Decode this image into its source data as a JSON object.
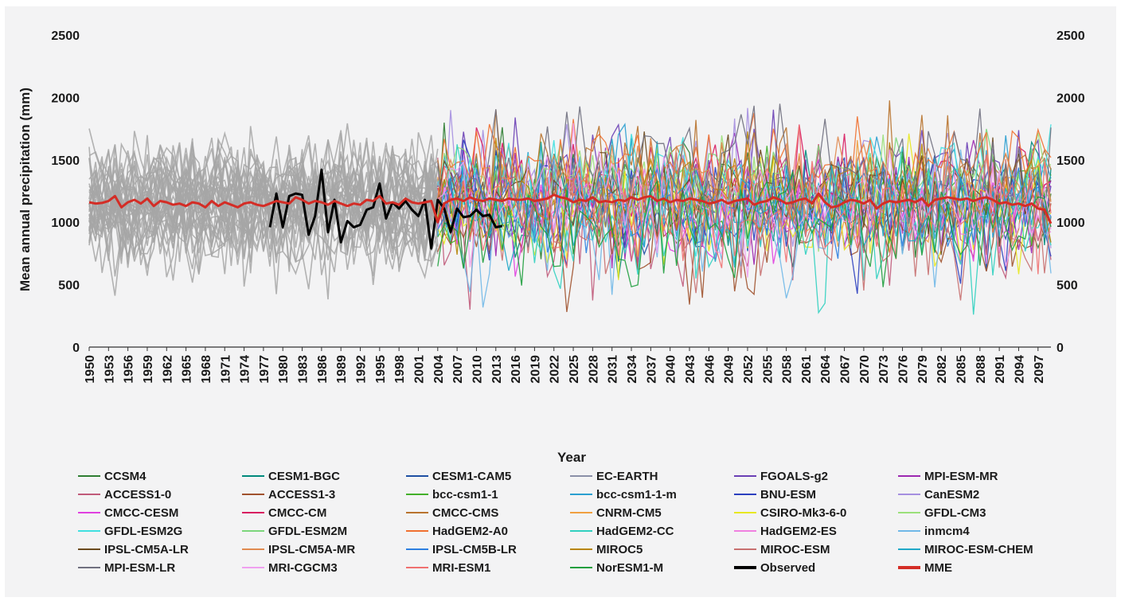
{
  "chart_data": {
    "type": "line",
    "title": "",
    "xlabel": "Year",
    "ylabel": "Mean annual precipitation (mm)",
    "xlim": [
      1950,
      2099
    ],
    "ylim": [
      0,
      2500
    ],
    "y_ticks": [
      0,
      500,
      1000,
      1500,
      2000,
      2500
    ],
    "x_ticks": [
      "1950",
      "1953",
      "1956",
      "1959",
      "1962",
      "1965",
      "1968",
      "1971",
      "1974",
      "1977",
      "1980",
      "1983",
      "1986",
      "1989",
      "1992",
      "1995",
      "1998",
      "2001",
      "2004",
      "2007",
      "2010",
      "2013",
      "2016",
      "2019",
      "2022",
      "2025",
      "2028",
      "2031",
      "2034",
      "2037",
      "2040",
      "2043",
      "2046",
      "2049",
      "2052",
      "2055",
      "2058",
      "2061",
      "2064",
      "2067",
      "2070",
      "2073",
      "2076",
      "2079",
      "2082",
      "2085",
      "2088",
      "2091",
      "2094",
      "2097"
    ],
    "grid": false,
    "legend_position": "bottom",
    "historical_period": [
      1950,
      2004
    ],
    "projection_period": [
      2004,
      2099
    ],
    "models": [
      {
        "name": "CCSM4",
        "color": "#2e7d32"
      },
      {
        "name": "CESM1-BGC",
        "color": "#00897b"
      },
      {
        "name": "CESM1-CAM5",
        "color": "#1e4fa3"
      },
      {
        "name": "EC-EARTH",
        "color": "#8a8fa8"
      },
      {
        "name": "FGOALS-g2",
        "color": "#6a3fb5"
      },
      {
        "name": "MPI-ESM-MR",
        "color": "#9c27b0"
      },
      {
        "name": "ACCESS1-0",
        "color": "#c05a7a"
      },
      {
        "name": "ACCESS1-3",
        "color": "#a0522d"
      },
      {
        "name": "bcc-csm1-1",
        "color": "#43b02a"
      },
      {
        "name": "bcc-csm1-1-m",
        "color": "#2a9fd0"
      },
      {
        "name": "BNU-ESM",
        "color": "#2b3fbf"
      },
      {
        "name": "CanESM2",
        "color": "#a58fe0"
      },
      {
        "name": "CMCC-CESM",
        "color": "#e040e0"
      },
      {
        "name": "CMCC-CM",
        "color": "#d81b60"
      },
      {
        "name": "CMCC-CMS",
        "color": "#b8732e"
      },
      {
        "name": "CNRM-CM5",
        "color": "#f0a040"
      },
      {
        "name": "CSIRO-Mk3-6-0",
        "color": "#e8e820"
      },
      {
        "name": "GFDL-CM3",
        "color": "#9be07a"
      },
      {
        "name": "GFDL-ESM2G",
        "color": "#40e0e0"
      },
      {
        "name": "GFDL-ESM2M",
        "color": "#7cd67c"
      },
      {
        "name": "HadGEM2-A0",
        "color": "#f07030"
      },
      {
        "name": "HadGEM2-CC",
        "color": "#30d0c0"
      },
      {
        "name": "HadGEM2-ES",
        "color": "#f080e0"
      },
      {
        "name": "inmcm4",
        "color": "#70b8e8"
      },
      {
        "name": "IPSL-CM5A-LR",
        "color": "#6b4a1e"
      },
      {
        "name": "IPSL-CM5A-MR",
        "color": "#e08a50"
      },
      {
        "name": "IPSL-CM5B-LR",
        "color": "#2d7fe0"
      },
      {
        "name": "MIROC5",
        "color": "#b8860b"
      },
      {
        "name": "MIROC-ESM",
        "color": "#c87070"
      },
      {
        "name": "MIROC-ESM-CHEM",
        "color": "#20a8c8"
      },
      {
        "name": "MPI-ESM-LR",
        "color": "#707080"
      },
      {
        "name": "MRI-CGCM3",
        "color": "#f0a0f0"
      },
      {
        "name": "MRI-ESM1",
        "color": "#f07070"
      },
      {
        "name": "NorESM1-M",
        "color": "#1f9e3e"
      }
    ],
    "series": [
      {
        "name": "Observed",
        "color": "#000000",
        "x": [
          1978,
          1979,
          1980,
          1981,
          1982,
          1983,
          1984,
          1985,
          1986,
          1987,
          1988,
          1989,
          1990,
          1991,
          1992,
          1993,
          1994,
          1995,
          1996,
          1997,
          1998,
          1999,
          2000,
          2001,
          2002,
          2003,
          2004,
          2005,
          2006,
          2007,
          2008,
          2009,
          2010,
          2011,
          2012,
          2013,
          2014
        ],
        "values": [
          960,
          1230,
          960,
          1210,
          1230,
          1220,
          900,
          1050,
          1420,
          920,
          1180,
          840,
          1010,
          960,
          980,
          1100,
          1120,
          1310,
          1030,
          1160,
          1110,
          1170,
          1100,
          1050,
          1180,
          790,
          1180,
          1110,
          920,
          1110,
          1040,
          1050,
          1100,
          1050,
          1060,
          960,
          970
        ]
      },
      {
        "name": "MME",
        "color": "#d42d26",
        "x": [
          1950,
          1951,
          1952,
          1953,
          1954,
          1955,
          1956,
          1957,
          1958,
          1959,
          1960,
          1961,
          1962,
          1963,
          1964,
          1965,
          1966,
          1967,
          1968,
          1969,
          1970,
          1971,
          1972,
          1973,
          1974,
          1975,
          1976,
          1977,
          1978,
          1979,
          1980,
          1981,
          1982,
          1983,
          1984,
          1985,
          1986,
          1987,
          1988,
          1989,
          1990,
          1991,
          1992,
          1993,
          1994,
          1995,
          1996,
          1997,
          1998,
          1999,
          2000,
          2001,
          2002,
          2003,
          2004,
          2005,
          2006,
          2007,
          2008,
          2009,
          2010,
          2011,
          2012,
          2013,
          2014,
          2015,
          2016,
          2017,
          2018,
          2019,
          2020,
          2021,
          2022,
          2023,
          2024,
          2025,
          2026,
          2027,
          2028,
          2029,
          2030,
          2031,
          2032,
          2033,
          2034,
          2035,
          2036,
          2037,
          2038,
          2039,
          2040,
          2041,
          2042,
          2043,
          2044,
          2045,
          2046,
          2047,
          2048,
          2049,
          2050,
          2051,
          2052,
          2053,
          2054,
          2055,
          2056,
          2057,
          2058,
          2059,
          2060,
          2061,
          2062,
          2063,
          2064,
          2065,
          2066,
          2067,
          2068,
          2069,
          2070,
          2071,
          2072,
          2073,
          2074,
          2075,
          2076,
          2077,
          2078,
          2079,
          2080,
          2081,
          2082,
          2083,
          2084,
          2085,
          2086,
          2087,
          2088,
          2089,
          2090,
          2091,
          2092,
          2093,
          2094,
          2095,
          2096,
          2097,
          2098,
          2099
        ],
        "values": [
          1160,
          1150,
          1155,
          1170,
          1210,
          1120,
          1160,
          1180,
          1150,
          1190,
          1130,
          1170,
          1160,
          1140,
          1150,
          1130,
          1160,
          1150,
          1120,
          1170,
          1130,
          1160,
          1140,
          1120,
          1150,
          1160,
          1140,
          1130,
          1150,
          1170,
          1160,
          1150,
          1200,
          1180,
          1150,
          1170,
          1160,
          1140,
          1170,
          1150,
          1130,
          1150,
          1140,
          1180,
          1170,
          1210,
          1150,
          1160,
          1140,
          1190,
          1160,
          1150,
          1160,
          1170,
          1000,
          1150,
          1180,
          1190,
          1170,
          1200,
          1180,
          1170,
          1190,
          1180,
          1170,
          1190,
          1180,
          1180,
          1190,
          1170,
          1180,
          1190,
          1220,
          1200,
          1190,
          1160,
          1180,
          1170,
          1200,
          1160,
          1170,
          1160,
          1180,
          1170,
          1200,
          1180,
          1200,
          1210,
          1170,
          1190,
          1160,
          1180,
          1170,
          1190,
          1180,
          1170,
          1150,
          1160,
          1180,
          1150,
          1170,
          1180,
          1190,
          1140,
          1160,
          1170,
          1200,
          1180,
          1150,
          1160,
          1180,
          1190,
          1150,
          1230,
          1160,
          1120,
          1130,
          1160,
          1180,
          1170,
          1150,
          1180,
          1110,
          1150,
          1170,
          1160,
          1170,
          1180,
          1160,
          1190,
          1130,
          1180,
          1190,
          1200,
          1190,
          1180,
          1190,
          1170,
          1190,
          1200,
          1180,
          1150,
          1160,
          1140,
          1150,
          1130,
          1150,
          1110,
          1100,
          990
        ]
      }
    ]
  },
  "legend": [
    {
      "label": "CCSM4",
      "color": "#2e7d32"
    },
    {
      "label": "CESM1-BGC",
      "color": "#00897b"
    },
    {
      "label": "CESM1-CAM5",
      "color": "#1e4fa3"
    },
    {
      "label": "EC-EARTH",
      "color": "#8a8fa8"
    },
    {
      "label": "FGOALS-g2",
      "color": "#6a3fb5"
    },
    {
      "label": "MPI-ESM-MR",
      "color": "#9c27b0"
    },
    {
      "label": "ACCESS1-0",
      "color": "#c05a7a"
    },
    {
      "label": "ACCESS1-3",
      "color": "#a0522d"
    },
    {
      "label": "bcc-csm1-1",
      "color": "#43b02a"
    },
    {
      "label": "bcc-csm1-1-m",
      "color": "#2a9fd0"
    },
    {
      "label": "BNU-ESM",
      "color": "#2b3fbf"
    },
    {
      "label": "CanESM2",
      "color": "#a58fe0"
    },
    {
      "label": "CMCC-CESM",
      "color": "#e040e0"
    },
    {
      "label": "CMCC-CM",
      "color": "#d81b60"
    },
    {
      "label": "CMCC-CMS",
      "color": "#b8732e"
    },
    {
      "label": "CNRM-CM5",
      "color": "#f0a040"
    },
    {
      "label": "CSIRO-Mk3-6-0",
      "color": "#e8e820"
    },
    {
      "label": "GFDL-CM3",
      "color": "#9be07a"
    },
    {
      "label": "GFDL-ESM2G",
      "color": "#40e0e0"
    },
    {
      "label": "GFDL-ESM2M",
      "color": "#7cd67c"
    },
    {
      "label": "HadGEM2-A0",
      "color": "#f07030"
    },
    {
      "label": "HadGEM2-CC",
      "color": "#30d0c0"
    },
    {
      "label": "HadGEM2-ES",
      "color": "#f080e0"
    },
    {
      "label": "inmcm4",
      "color": "#70b8e8"
    },
    {
      "label": "IPSL-CM5A-LR",
      "color": "#6b4a1e"
    },
    {
      "label": "IPSL-CM5A-MR",
      "color": "#e08a50"
    },
    {
      "label": "IPSL-CM5B-LR",
      "color": "#2d7fe0"
    },
    {
      "label": "MIROC5",
      "color": "#b8860b"
    },
    {
      "label": "MIROC-ESM",
      "color": "#c87070"
    },
    {
      "label": "MIROC-ESM-CHEM",
      "color": "#20a8c8"
    },
    {
      "label": "MPI-ESM-LR",
      "color": "#707080"
    },
    {
      "label": "MRI-CGCM3",
      "color": "#f0a0f0"
    },
    {
      "label": "MRI-ESM1",
      "color": "#f07070"
    },
    {
      "label": "NorESM1-M",
      "color": "#1f9e3e"
    },
    {
      "label": "Observed",
      "color": "#000000"
    },
    {
      "label": "MME",
      "color": "#d42d26"
    }
  ]
}
